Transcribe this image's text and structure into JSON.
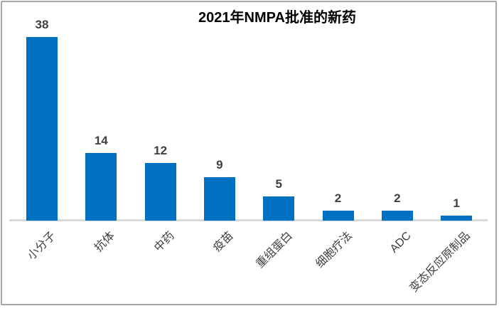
{
  "chart_data": {
    "type": "bar",
    "title": "2021年NMPA批准的新药",
    "categories": [
      "小分子",
      "抗体",
      "中药",
      "疫苗",
      "重组蛋白",
      "细胞疗法",
      "ADC",
      "变态反应原制品"
    ],
    "values": [
      38,
      14,
      12,
      9,
      5,
      2,
      2,
      1
    ],
    "series": [
      {
        "name": "2021年NMPA批准的新药",
        "values": [
          38,
          14,
          12,
          9,
          5,
          2,
          2,
          1
        ]
      }
    ],
    "xlabel": "",
    "ylabel": "",
    "ylim": [
      0,
      40
    ],
    "grid": false,
    "legend_position": "none",
    "data_labels_shown": true,
    "category_label_rotation_deg": 45,
    "colors": {
      "bar_fill": "#0070c0",
      "value_label": "#404040",
      "category_label": "#404040",
      "title": "#000000",
      "axis_line": "#d9d9d9",
      "frame_border": "#a6a6a6",
      "background": "#ffffff"
    }
  }
}
